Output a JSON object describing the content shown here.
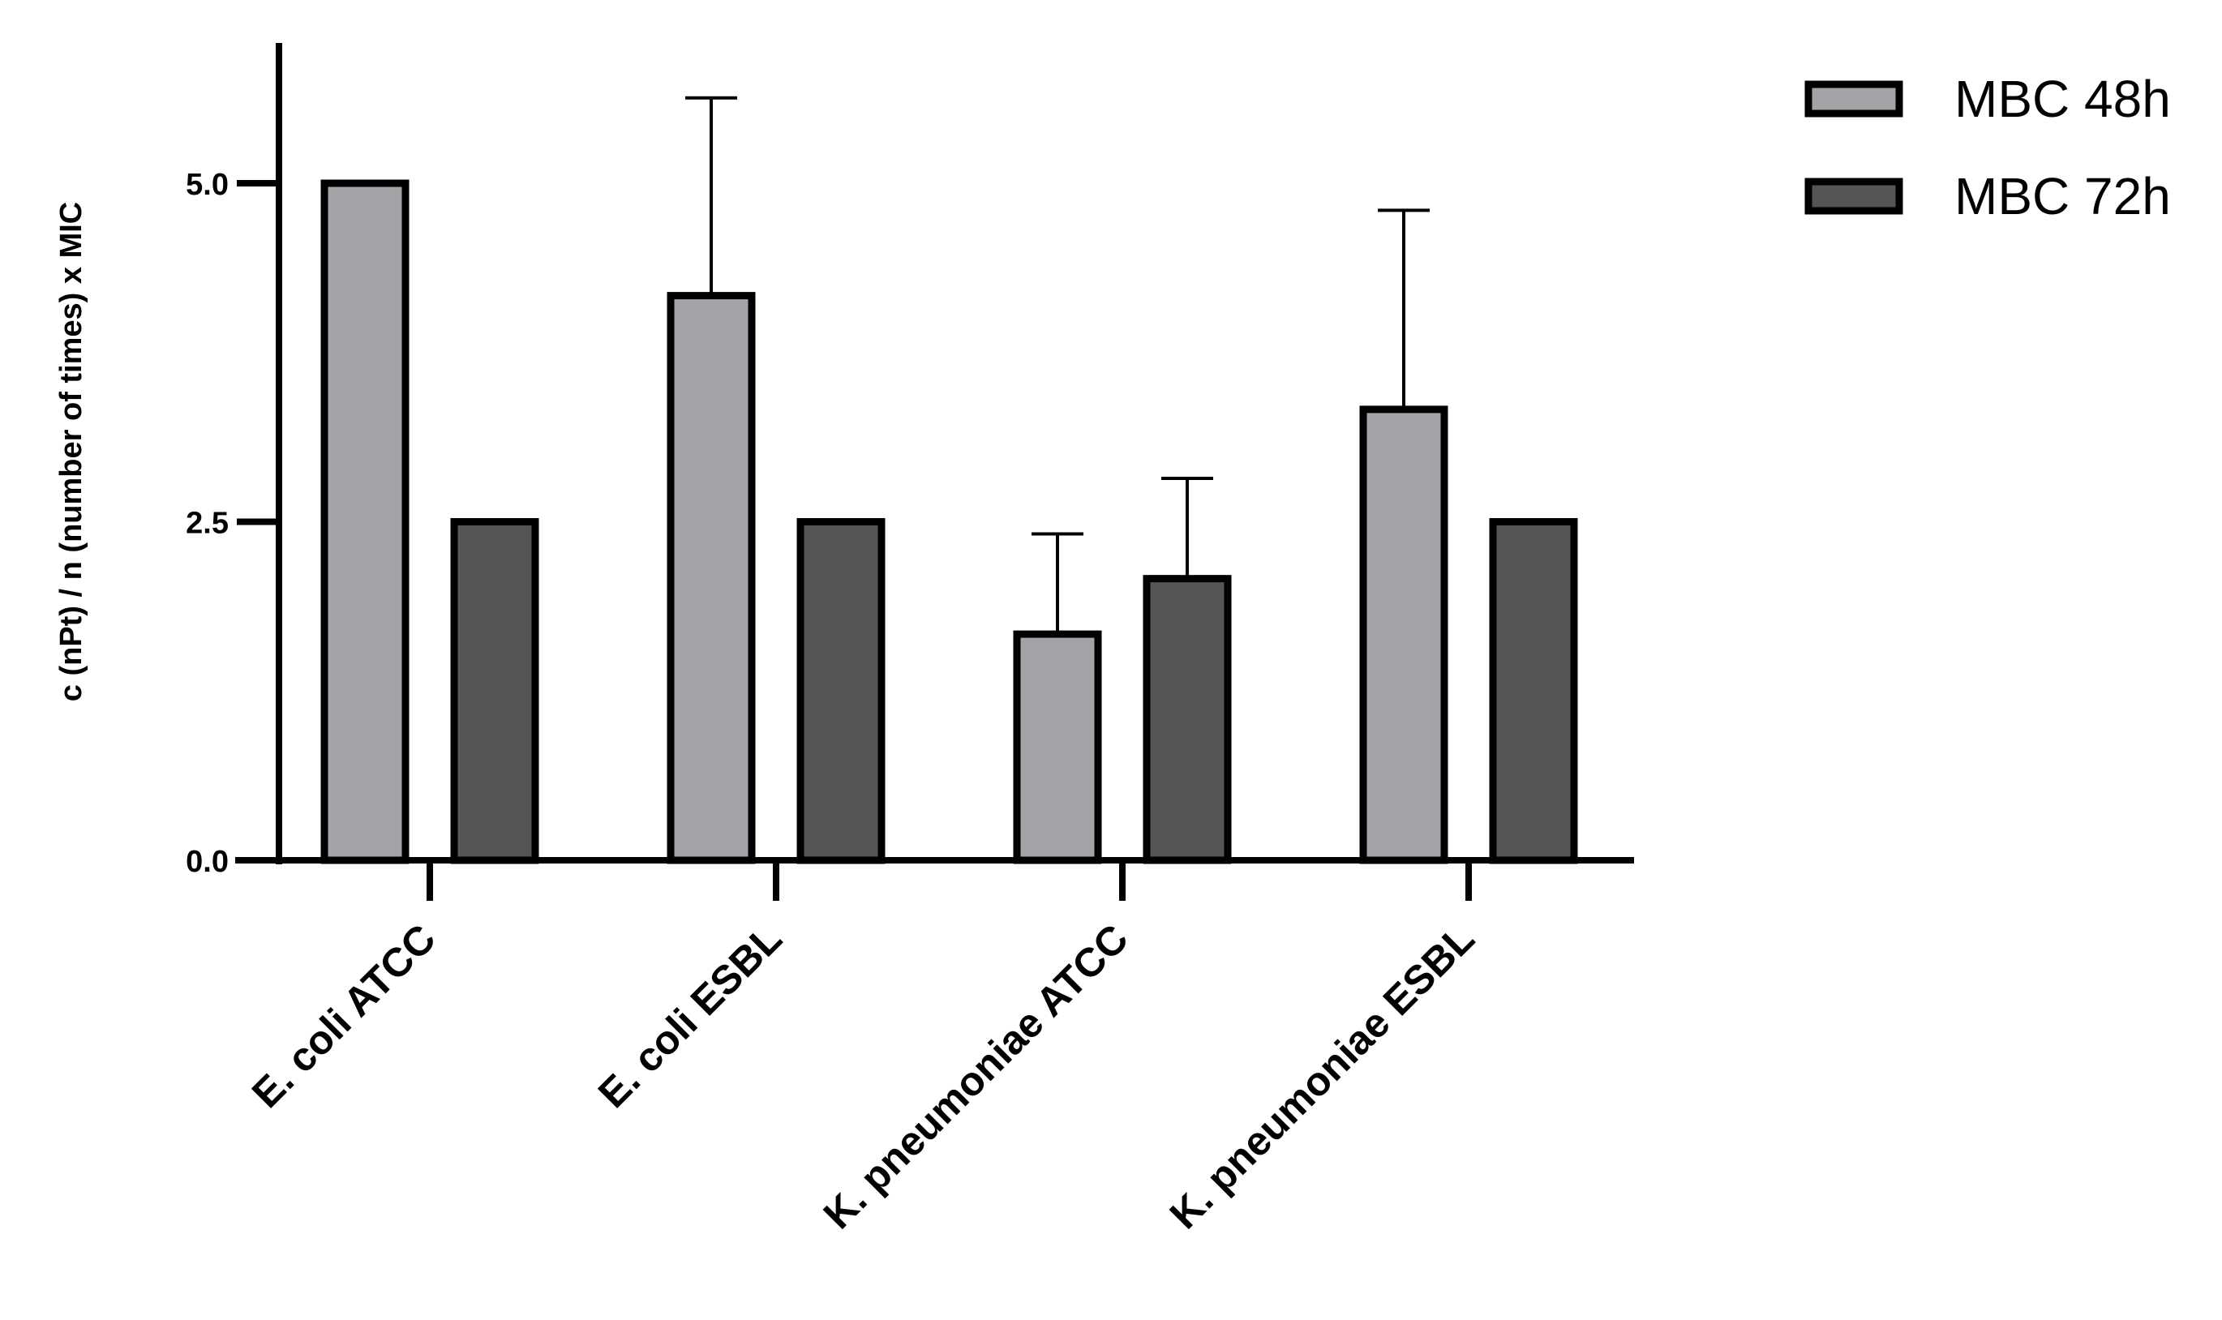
{
  "chart_data": {
    "type": "bar",
    "title": "",
    "xlabel": "",
    "ylabel": "c (nPt) / n (number of times) x MIC",
    "ylim": [
      0,
      6
    ],
    "yticks": [
      0.0,
      2.5,
      5.0
    ],
    "ytick_labels": [
      "0.0",
      "2.5",
      "5.0"
    ],
    "categories": [
      "E. coli ATCC",
      "E. coli ESBL",
      "K. pneumoniae ATCC",
      "K. pneumoniae ESBL"
    ],
    "series": [
      {
        "name": "MBC 48h",
        "color": "#a3a4a7",
        "values": [
          5.0,
          4.17,
          1.67,
          3.33
        ],
        "errors": [
          0,
          1.46,
          0.74,
          1.47
        ]
      },
      {
        "name": "MBC 72h",
        "color": "#555555",
        "values": [
          2.5,
          2.5,
          2.08,
          2.5
        ],
        "errors": [
          0,
          0,
          0.74,
          0
        ]
      }
    ],
    "legend_position": "top-right",
    "grid": false
  }
}
